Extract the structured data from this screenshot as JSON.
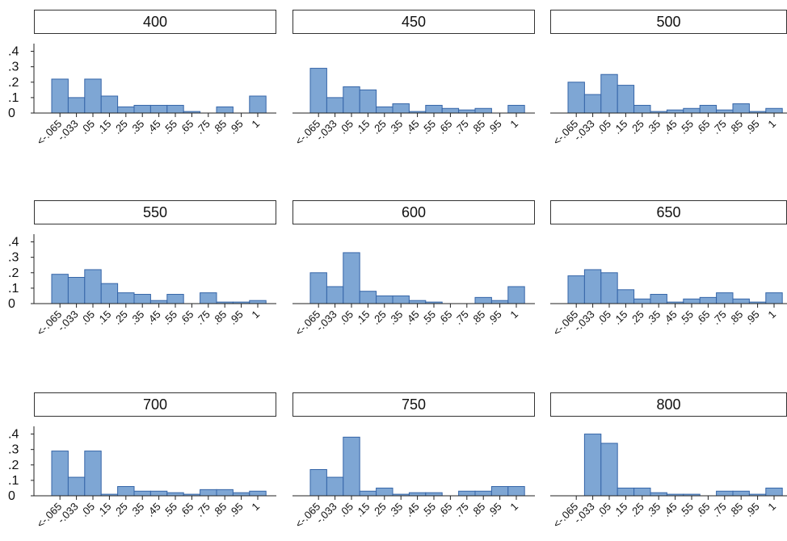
{
  "chart_data": {
    "type": "bar",
    "subtype": "faceted-histogram",
    "categories": [
      "<-.065",
      "-.033",
      ".05",
      ".15",
      ".25",
      ".35",
      ".45",
      ".55",
      ".65",
      ".75",
      ".85",
      ".95",
      "1"
    ],
    "ylim": [
      0,
      0.45
    ],
    "yticks": [
      0,
      0.1,
      0.2,
      0.3,
      0.4
    ],
    "ytick_labels": [
      "0",
      ".1",
      ".2",
      ".3",
      ".4"
    ],
    "grid": false,
    "bar_color": "#7ea6d4",
    "bar_edge_color": "#3565a8",
    "panels": [
      {
        "label": "400",
        "values": [
          0.22,
          0.1,
          0.22,
          0.11,
          0.04,
          0.05,
          0.05,
          0.05,
          0.01,
          0.0,
          0.04,
          0.0,
          0.11
        ]
      },
      {
        "label": "450",
        "values": [
          0.29,
          0.1,
          0.17,
          0.15,
          0.04,
          0.06,
          0.01,
          0.05,
          0.03,
          0.02,
          0.03,
          0.0,
          0.05
        ]
      },
      {
        "label": "500",
        "values": [
          0.2,
          0.12,
          0.25,
          0.18,
          0.05,
          0.01,
          0.02,
          0.03,
          0.05,
          0.02,
          0.06,
          0.01,
          0.03
        ]
      },
      {
        "label": "550",
        "values": [
          0.19,
          0.17,
          0.22,
          0.13,
          0.07,
          0.06,
          0.02,
          0.06,
          0.0,
          0.07,
          0.01,
          0.01,
          0.02
        ]
      },
      {
        "label": "600",
        "values": [
          0.2,
          0.11,
          0.33,
          0.08,
          0.05,
          0.05,
          0.02,
          0.01,
          0.0,
          0.0,
          0.04,
          0.02,
          0.11
        ]
      },
      {
        "label": "650",
        "values": [
          0.18,
          0.22,
          0.2,
          0.09,
          0.03,
          0.06,
          0.01,
          0.03,
          0.04,
          0.07,
          0.03,
          0.01,
          0.07
        ]
      },
      {
        "label": "700",
        "values": [
          0.29,
          0.12,
          0.29,
          0.01,
          0.06,
          0.03,
          0.03,
          0.02,
          0.01,
          0.04,
          0.04,
          0.02,
          0.03
        ]
      },
      {
        "label": "750",
        "values": [
          0.17,
          0.12,
          0.38,
          0.03,
          0.05,
          0.01,
          0.02,
          0.02,
          0.0,
          0.03,
          0.03,
          0.06,
          0.06
        ]
      },
      {
        "label": "800",
        "values": [
          0.0,
          0.4,
          0.34,
          0.05,
          0.05,
          0.02,
          0.01,
          0.01,
          0.0,
          0.03,
          0.03,
          0.01,
          0.05
        ]
      }
    ]
  }
}
